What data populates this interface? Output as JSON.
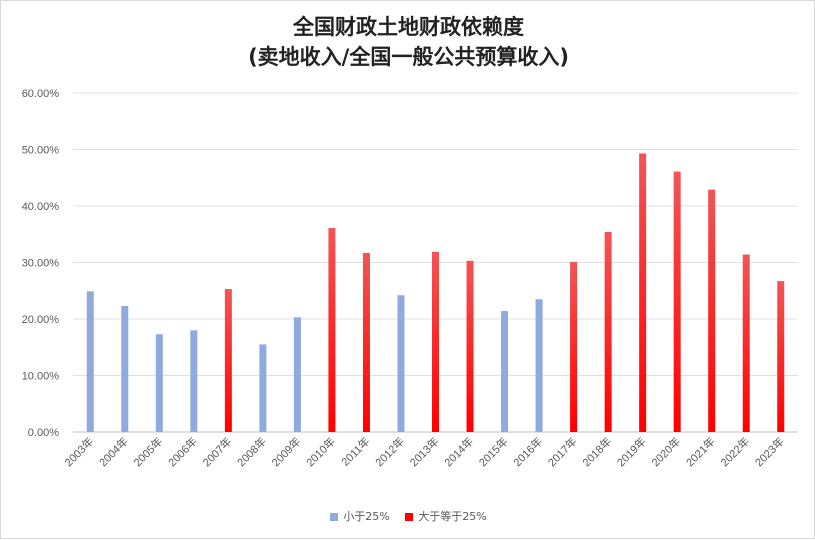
{
  "chart_data": {
    "type": "bar",
    "title": "全国财政土地财政依赖度",
    "subtitle": "(卖地收入/全国一般公共预算收入)",
    "categories": [
      "2003年",
      "2004年",
      "2005年",
      "2006年",
      "2007年",
      "2008年",
      "2009年",
      "2010年",
      "2011年",
      "2012年",
      "2013年",
      "2014年",
      "2015年",
      "2016年",
      "2017年",
      "2018年",
      "2019年",
      "2020年",
      "2021年",
      "2022年",
      "2023年"
    ],
    "series": [
      {
        "name": "小于25%",
        "color": "#8faadc",
        "values": [
          24.9,
          22.3,
          17.3,
          18.0,
          null,
          15.5,
          20.3,
          null,
          null,
          24.2,
          null,
          null,
          21.4,
          23.5,
          null,
          null,
          null,
          null,
          null,
          null,
          null
        ]
      },
      {
        "name": "大于等于25%",
        "color": "#ff0000",
        "values": [
          null,
          null,
          null,
          null,
          25.3,
          null,
          null,
          36.1,
          31.7,
          null,
          31.9,
          30.3,
          null,
          null,
          30.1,
          35.4,
          49.3,
          46.1,
          42.9,
          31.4,
          26.7
        ]
      }
    ],
    "ylim": [
      0,
      60
    ],
    "yticks": [
      "0.00%",
      "10.00%",
      "20.00%",
      "30.00%",
      "40.00%",
      "50.00%",
      "60.00%"
    ],
    "grid": true,
    "legend_position": "bottom"
  }
}
